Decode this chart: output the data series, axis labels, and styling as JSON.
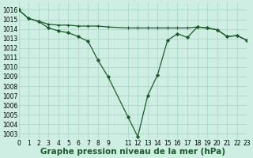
{
  "title": "Graphe pression niveau de la mer (hPa)",
  "background_color": "#ceeee4",
  "grid_color": "#a8d8c8",
  "line_color": "#1a5c28",
  "marker_color": "#1a5c28",
  "xlim": [
    0,
    23
  ],
  "ylim": [
    1002.5,
    1016.8
  ],
  "yticks": [
    1003,
    1004,
    1005,
    1006,
    1007,
    1008,
    1009,
    1010,
    1011,
    1012,
    1013,
    1014,
    1015,
    1016
  ],
  "xtick_positions": [
    0,
    1,
    2,
    3,
    4,
    5,
    6,
    7,
    8,
    9,
    11,
    12,
    13,
    14,
    15,
    16,
    17,
    18,
    19,
    20,
    21,
    22,
    23
  ],
  "xtick_labels": [
    "0",
    "1",
    "2",
    "3",
    "4",
    "5",
    "6",
    "7",
    "8",
    "9",
    "11",
    "12",
    "13",
    "14",
    "15",
    "16",
    "17",
    "18",
    "19",
    "20",
    "21",
    "22",
    "23"
  ],
  "x_main": [
    0,
    1,
    2,
    3,
    4,
    5,
    6,
    7,
    8,
    9,
    11,
    12,
    13,
    14,
    15,
    16,
    17,
    18,
    19,
    20,
    21,
    22,
    23
  ],
  "y_main": [
    1016.0,
    1015.1,
    1014.8,
    1014.1,
    1013.8,
    1013.6,
    1013.2,
    1012.7,
    1010.7,
    1009.0,
    1004.8,
    1002.7,
    1007.0,
    1009.2,
    1012.8,
    1013.5,
    1013.1,
    1014.2,
    1014.1,
    1013.9,
    1013.2,
    1013.3,
    1012.8
  ],
  "x_upper": [
    0,
    1,
    2,
    3,
    4,
    5,
    6,
    7,
    8,
    9,
    11,
    12,
    13,
    14,
    15,
    16,
    17,
    18,
    19,
    20,
    21,
    22,
    23
  ],
  "y_upper": [
    1016.0,
    1015.1,
    1014.8,
    1014.5,
    1014.4,
    1014.4,
    1014.3,
    1014.3,
    1014.3,
    1014.2,
    1014.1,
    1014.1,
    1014.1,
    1014.1,
    1014.1,
    1014.1,
    1014.1,
    1014.2,
    1014.1,
    1013.9,
    1013.2,
    1013.3,
    1012.8
  ],
  "tick_fontsize": 5.5,
  "label_fontsize": 7.5,
  "label_fontweight": "bold"
}
